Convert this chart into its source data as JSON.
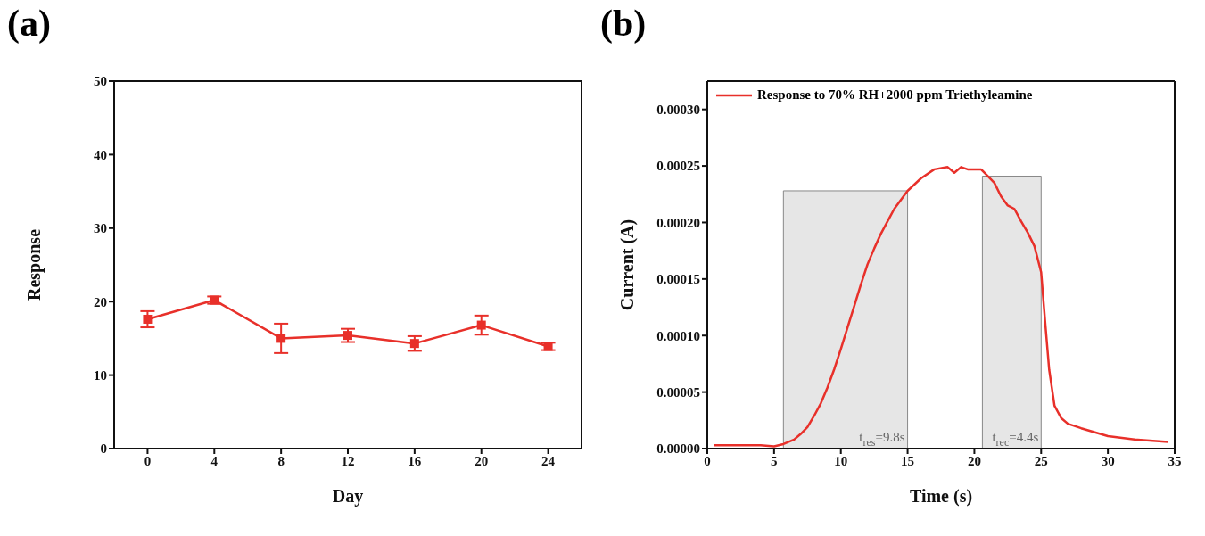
{
  "chart_data": [
    {
      "type": "line",
      "annotations": [
        "(a)"
      ],
      "xlabel": "Day",
      "ylabel": "Response",
      "x": [
        0,
        4,
        8,
        12,
        16,
        20,
        24
      ],
      "series": [
        {
          "color": "#e8302a",
          "values": [
            17.6,
            20.2,
            15.0,
            15.4,
            14.3,
            16.8,
            13.9
          ],
          "errors": [
            1.1,
            0.5,
            2.0,
            0.9,
            1.0,
            1.3,
            0.5
          ]
        }
      ],
      "xlim": [
        -2,
        26
      ],
      "xticks": [
        0,
        4,
        8,
        12,
        16,
        20,
        24
      ],
      "ylim": [
        0,
        50
      ],
      "yticks": [
        0,
        10,
        20,
        30,
        40,
        50
      ],
      "marker": "square"
    },
    {
      "type": "line",
      "annotations": [
        "(b)"
      ],
      "xlabel": "Time (s)",
      "ylabel": "Current (A)",
      "x": [
        0.5,
        4,
        5,
        5.7,
        6.5,
        7,
        7.5,
        8,
        8.5,
        9,
        9.5,
        10,
        10.5,
        11,
        11.5,
        12,
        12.5,
        13,
        13.5,
        14,
        15,
        16,
        17,
        18,
        18.5,
        19,
        19.5,
        20.5,
        21,
        21.5,
        22,
        22.5,
        23,
        23.5,
        24,
        24.5,
        25,
        25.3,
        25.6,
        26,
        26.5,
        27,
        28,
        30,
        32,
        34.5
      ],
      "series": [
        {
          "name": "Response to 70% RH+2000 ppm Triethyleamine",
          "color": "#e8302a",
          "values": [
            3e-06,
            3e-06,
            2e-06,
            4e-06,
            8e-06,
            1.3e-05,
            1.9e-05,
            2.9e-05,
            4e-05,
            5.4e-05,
            7e-05,
            8.8e-05,
            0.000107,
            0.000126,
            0.000145,
            0.000163,
            0.000177,
            0.00019,
            0.000201,
            0.000212,
            0.000228,
            0.000239,
            0.000247,
            0.000249,
            0.000244,
            0.000249,
            0.000247,
            0.000247,
            0.000241,
            0.000235,
            0.000223,
            0.000215,
            0.000212,
            0.000201,
            0.000191,
            0.000179,
            0.000156,
            0.000112,
            7e-05,
            3.8e-05,
            2.7e-05,
            2.2e-05,
            1.8e-05,
            1.1e-05,
            8e-06,
            6e-06
          ]
        }
      ],
      "xlim": [
        0,
        35
      ],
      "xticks": [
        0,
        5,
        10,
        15,
        20,
        25,
        30,
        35
      ],
      "ylim": [
        0,
        0.000325
      ],
      "yticks": [
        {
          "value": 0,
          "label": "0.00000"
        },
        {
          "value": 5e-05,
          "label": "0.00005"
        },
        {
          "value": 0.0001,
          "label": "0.00010"
        },
        {
          "value": 0.00015,
          "label": "0.00015"
        },
        {
          "value": 0.0002,
          "label": "0.00020"
        },
        {
          "value": 0.00025,
          "label": "0.00025"
        },
        {
          "value": 0.0003,
          "label": "0.00030"
        }
      ],
      "bands": [
        {
          "axis": "x",
          "from": 5.7,
          "to": 15,
          "label": "t$_{res}$=9.8s",
          "color": "#e6e6e6"
        },
        {
          "axis": "x",
          "from": 20.6,
          "to": 25,
          "label": "t$_{rec}$=4.4s",
          "color": "#e6e6e6"
        }
      ],
      "marker": "none",
      "legend": "top left"
    }
  ]
}
